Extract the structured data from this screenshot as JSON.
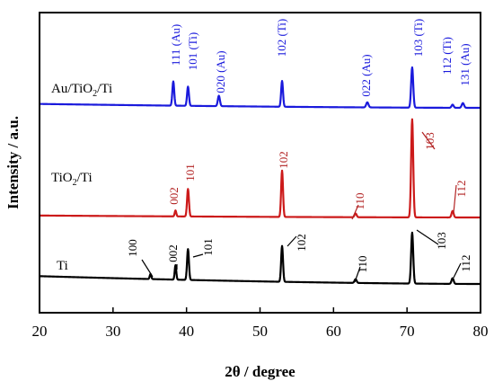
{
  "chart_data": {
    "type": "line",
    "title": "",
    "xlabel": "2θ / degree",
    "ylabel": "Intensity / a.u.",
    "xlim": [
      20,
      80
    ],
    "x_ticks": [
      "20",
      "30",
      "40",
      "50",
      "60",
      "70",
      "80"
    ],
    "y_ticks": [],
    "grid": false,
    "legend": "none",
    "series": [
      {
        "name": "Au/TiO2/Ti",
        "label_main": "Au/TiO",
        "label_sub": "2",
        "label_rest": "/Ti",
        "color": "#1a1adc",
        "label_color": "#1a1adc",
        "baseline_start": 0.62,
        "baseline_end": 0.0,
        "peaks": [
          {
            "x": 38.2,
            "h": 3.85,
            "w": 0.18,
            "label": "111 (Au)"
          },
          {
            "x": 40.2,
            "h": 3.05,
            "w": 0.18,
            "label": "101 (Ti)"
          },
          {
            "x": 44.4,
            "h": 1.65,
            "w": 0.2,
            "label": "020 (Au)"
          },
          {
            "x": 53.0,
            "h": 4.1,
            "w": 0.18,
            "label": "102 (Ti)"
          },
          {
            "x": 64.6,
            "h": 0.8,
            "w": 0.22,
            "label": "022 (Au)"
          },
          {
            "x": 70.7,
            "h": 6.4,
            "w": 0.2,
            "label": "103 (Ti)"
          },
          {
            "x": 76.2,
            "h": 0.5,
            "w": 0.2,
            "label": "112 (Ti)"
          },
          {
            "x": 77.6,
            "h": 0.75,
            "w": 0.22,
            "label": "131 (Au)"
          }
        ]
      },
      {
        "name": "TiO2/Ti",
        "label_main": "TiO",
        "label_sub": "2",
        "label_rest": "/Ti",
        "color": "#cc1a1a",
        "label_color": "#b22222",
        "baseline_start": 0.18,
        "baseline_end": 0.0,
        "peaks": [
          {
            "x": 38.5,
            "h": 0.55,
            "w": 0.15,
            "label": "002"
          },
          {
            "x": 40.2,
            "h": 2.55,
            "w": 0.18,
            "label": "101"
          },
          {
            "x": 53.0,
            "h": 4.3,
            "w": 0.18,
            "label": "102"
          },
          {
            "x": 63.0,
            "h": 0.35,
            "w": 0.2,
            "label": "110"
          },
          {
            "x": 70.7,
            "h": 9.1,
            "w": 0.2,
            "label": "103"
          },
          {
            "x": 76.2,
            "h": 0.6,
            "w": 0.2,
            "label": "112"
          }
        ]
      },
      {
        "name": "Ti",
        "label_main": "Ti",
        "label_sub": "",
        "label_rest": "",
        "color": "#000000",
        "label_color": "#000000",
        "baseline_start": 0.62,
        "baseline_end": 0.0,
        "peaks": [
          {
            "x": 35.1,
            "h": 0.4,
            "w": 0.15,
            "label": "100"
          },
          {
            "x": 38.5,
            "h": 1.15,
            "w": 0.15,
            "label": "002"
          },
          {
            "x": 40.2,
            "h": 2.45,
            "w": 0.18,
            "label": "101"
          },
          {
            "x": 53.0,
            "h": 2.85,
            "w": 0.18,
            "label": "102"
          },
          {
            "x": 63.0,
            "h": 0.3,
            "w": 0.2,
            "label": "110"
          },
          {
            "x": 70.7,
            "h": 4.05,
            "w": 0.2,
            "label": "103"
          },
          {
            "x": 76.2,
            "h": 0.45,
            "w": 0.2,
            "label": "112"
          }
        ]
      }
    ]
  }
}
